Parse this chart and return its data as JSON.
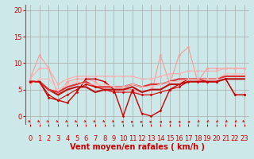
{
  "bg_color": "#cce8e8",
  "grid_color": "#aaaaaa",
  "xlabel": "Vent moyen/en rafales ( km/h )",
  "xlabel_color": "#cc0000",
  "xlabel_fontsize": 7,
  "tick_color": "#cc0000",
  "tick_fontsize": 6,
  "yticks": [
    0,
    5,
    10,
    15,
    20
  ],
  "xticks": [
    0,
    1,
    2,
    3,
    4,
    5,
    6,
    7,
    8,
    9,
    10,
    11,
    12,
    13,
    14,
    15,
    16,
    17,
    18,
    19,
    20,
    21,
    22,
    23
  ],
  "xlim": [
    -0.5,
    23.5
  ],
  "ylim": [
    -1.5,
    21
  ],
  "series": [
    {
      "x": [
        0,
        1,
        2,
        3,
        4,
        5,
        6,
        7,
        8,
        9,
        10,
        11,
        12,
        13,
        14,
        15,
        16,
        17,
        18,
        19,
        20,
        21,
        22,
        23
      ],
      "y": [
        7,
        11.5,
        9,
        4,
        6.5,
        7,
        7,
        6.5,
        5,
        4.5,
        5,
        5,
        4,
        4,
        11.5,
        6,
        11.5,
        13,
        6.5,
        9,
        9,
        9,
        9,
        9
      ],
      "color": "#ff9999",
      "lw": 0.8,
      "marker": "D",
      "ms": 1.5
    },
    {
      "x": [
        0,
        1,
        2,
        3,
        4,
        5,
        6,
        7,
        8,
        9,
        10,
        11,
        12,
        13,
        14,
        15,
        16,
        17,
        18,
        19,
        20,
        21,
        22,
        23
      ],
      "y": [
        6.5,
        6.5,
        3.5,
        3,
        2.5,
        4.5,
        7,
        7,
        6.5,
        5,
        0,
        5,
        0.5,
        0,
        1,
        5,
        6,
        7,
        7,
        6.5,
        6.5,
        7,
        4,
        4
      ],
      "color": "#cc0000",
      "lw": 1.0,
      "marker": "D",
      "ms": 1.5
    },
    {
      "x": [
        0,
        1,
        2,
        3,
        4,
        5,
        6,
        7,
        8,
        9,
        10,
        11,
        12,
        13,
        14,
        15,
        16,
        17,
        18,
        19,
        20,
        21,
        22,
        23
      ],
      "y": [
        6.5,
        6.5,
        5,
        4,
        5,
        5.5,
        5.5,
        4.5,
        5,
        5,
        5,
        5.5,
        4.5,
        5,
        5,
        6,
        6,
        6.5,
        6.5,
        6.5,
        6.5,
        7,
        7,
        7
      ],
      "color": "#bb1111",
      "lw": 1.5,
      "marker": null,
      "ms": 0
    },
    {
      "x": [
        0,
        1,
        2,
        3,
        4,
        5,
        6,
        7,
        8,
        9,
        10,
        11,
        12,
        13,
        14,
        15,
        16,
        17,
        18,
        19,
        20,
        21,
        22,
        23
      ],
      "y": [
        6.5,
        6.5,
        5,
        4.5,
        5.5,
        6,
        6.5,
        5.5,
        5.5,
        5.5,
        5.5,
        6,
        5.5,
        6,
        6,
        6.5,
        7,
        7,
        7,
        7,
        7,
        7.5,
        7.5,
        7.5
      ],
      "color": "#dd3333",
      "lw": 1.5,
      "marker": null,
      "ms": 0
    },
    {
      "x": [
        0,
        1,
        2,
        3,
        4,
        5,
        6,
        7,
        8,
        9,
        10,
        11,
        12,
        13,
        14,
        15,
        16,
        17,
        18,
        19,
        20,
        21,
        22,
        23
      ],
      "y": [
        6,
        7,
        7,
        5,
        6,
        6.5,
        6,
        6,
        6,
        5.5,
        5.5,
        6,
        5.5,
        5.5,
        6,
        6.5,
        6.5,
        7,
        7,
        7,
        7,
        8,
        8,
        8
      ],
      "color": "#ffbbbb",
      "lw": 0.8,
      "marker": "D",
      "ms": 1.5
    },
    {
      "x": [
        0,
        1,
        2,
        3,
        4,
        5,
        6,
        7,
        8,
        9,
        10,
        11,
        12,
        13,
        14,
        15,
        16,
        17,
        18,
        19,
        20,
        21,
        22,
        23
      ],
      "y": [
        7,
        9,
        9,
        6,
        7,
        7.5,
        7.5,
        7.5,
        7.5,
        7.5,
        7.5,
        7.5,
        7,
        7,
        7.5,
        8,
        8,
        8.5,
        8.5,
        8.5,
        8.5,
        9,
        9,
        9
      ],
      "color": "#ffaaaa",
      "lw": 0.8,
      "marker": "D",
      "ms": 1.5
    },
    {
      "x": [
        0,
        1,
        2,
        3,
        4,
        5,
        6,
        7,
        8,
        9,
        10,
        11,
        12,
        13,
        14,
        15,
        16,
        17,
        18,
        19,
        20,
        21,
        22,
        23
      ],
      "y": [
        6.5,
        6.5,
        4,
        3,
        4,
        5,
        6,
        5.5,
        5,
        4.5,
        4.5,
        4.5,
        4,
        4,
        4.5,
        5,
        5.5,
        6.5,
        6.5,
        6.5,
        6.5,
        7,
        4,
        4
      ],
      "color": "#cc0000",
      "lw": 0.8,
      "marker": "D",
      "ms": 1.5
    }
  ],
  "arrow_color": "#cc0000",
  "arrow_angles_deg": [
    135,
    135,
    135,
    135,
    135,
    135,
    135,
    135,
    135,
    135,
    90,
    90,
    90,
    90,
    270,
    270,
    270,
    270,
    225,
    225,
    225,
    225,
    225,
    135
  ]
}
